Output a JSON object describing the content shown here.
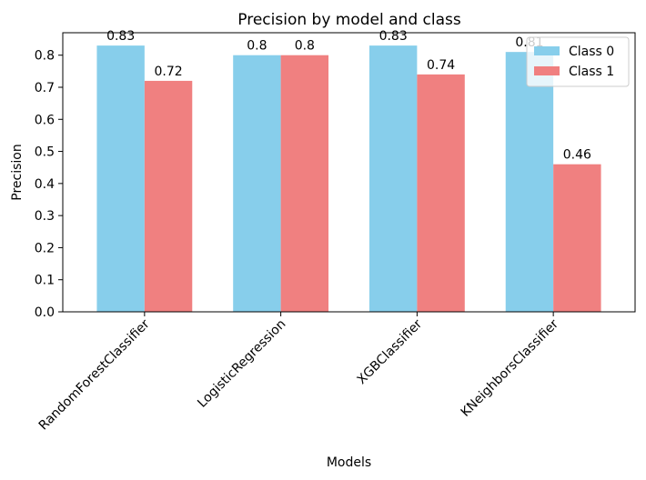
{
  "chart_data": {
    "type": "bar",
    "title": "Precision by model and class",
    "xlabel": "Models",
    "ylabel": "Precision",
    "categories": [
      "RandomForestClassifier",
      "LogisticRegression",
      "XGBClassifier",
      "KNeighborsClassifier"
    ],
    "series": [
      {
        "name": "Class 0",
        "values": [
          0.83,
          0.8,
          0.83,
          0.81
        ],
        "labels": [
          "0.83",
          "0.8",
          "0.83",
          "0.81"
        ],
        "color": "#87ceeb"
      },
      {
        "name": "Class 1",
        "values": [
          0.72,
          0.8,
          0.74,
          0.46
        ],
        "labels": [
          "0.72",
          "0.8",
          "0.74",
          "0.46"
        ],
        "color": "#f08080"
      }
    ],
    "ylim": [
      0,
      0.87
    ],
    "yticks": [
      0.0,
      0.1,
      0.2,
      0.3,
      0.4,
      0.5,
      0.6,
      0.7,
      0.8
    ],
    "ytick_labels": [
      "0.0",
      "0.1",
      "0.2",
      "0.3",
      "0.4",
      "0.5",
      "0.6",
      "0.7",
      "0.8"
    ],
    "grid": false,
    "legend": "upper right"
  }
}
